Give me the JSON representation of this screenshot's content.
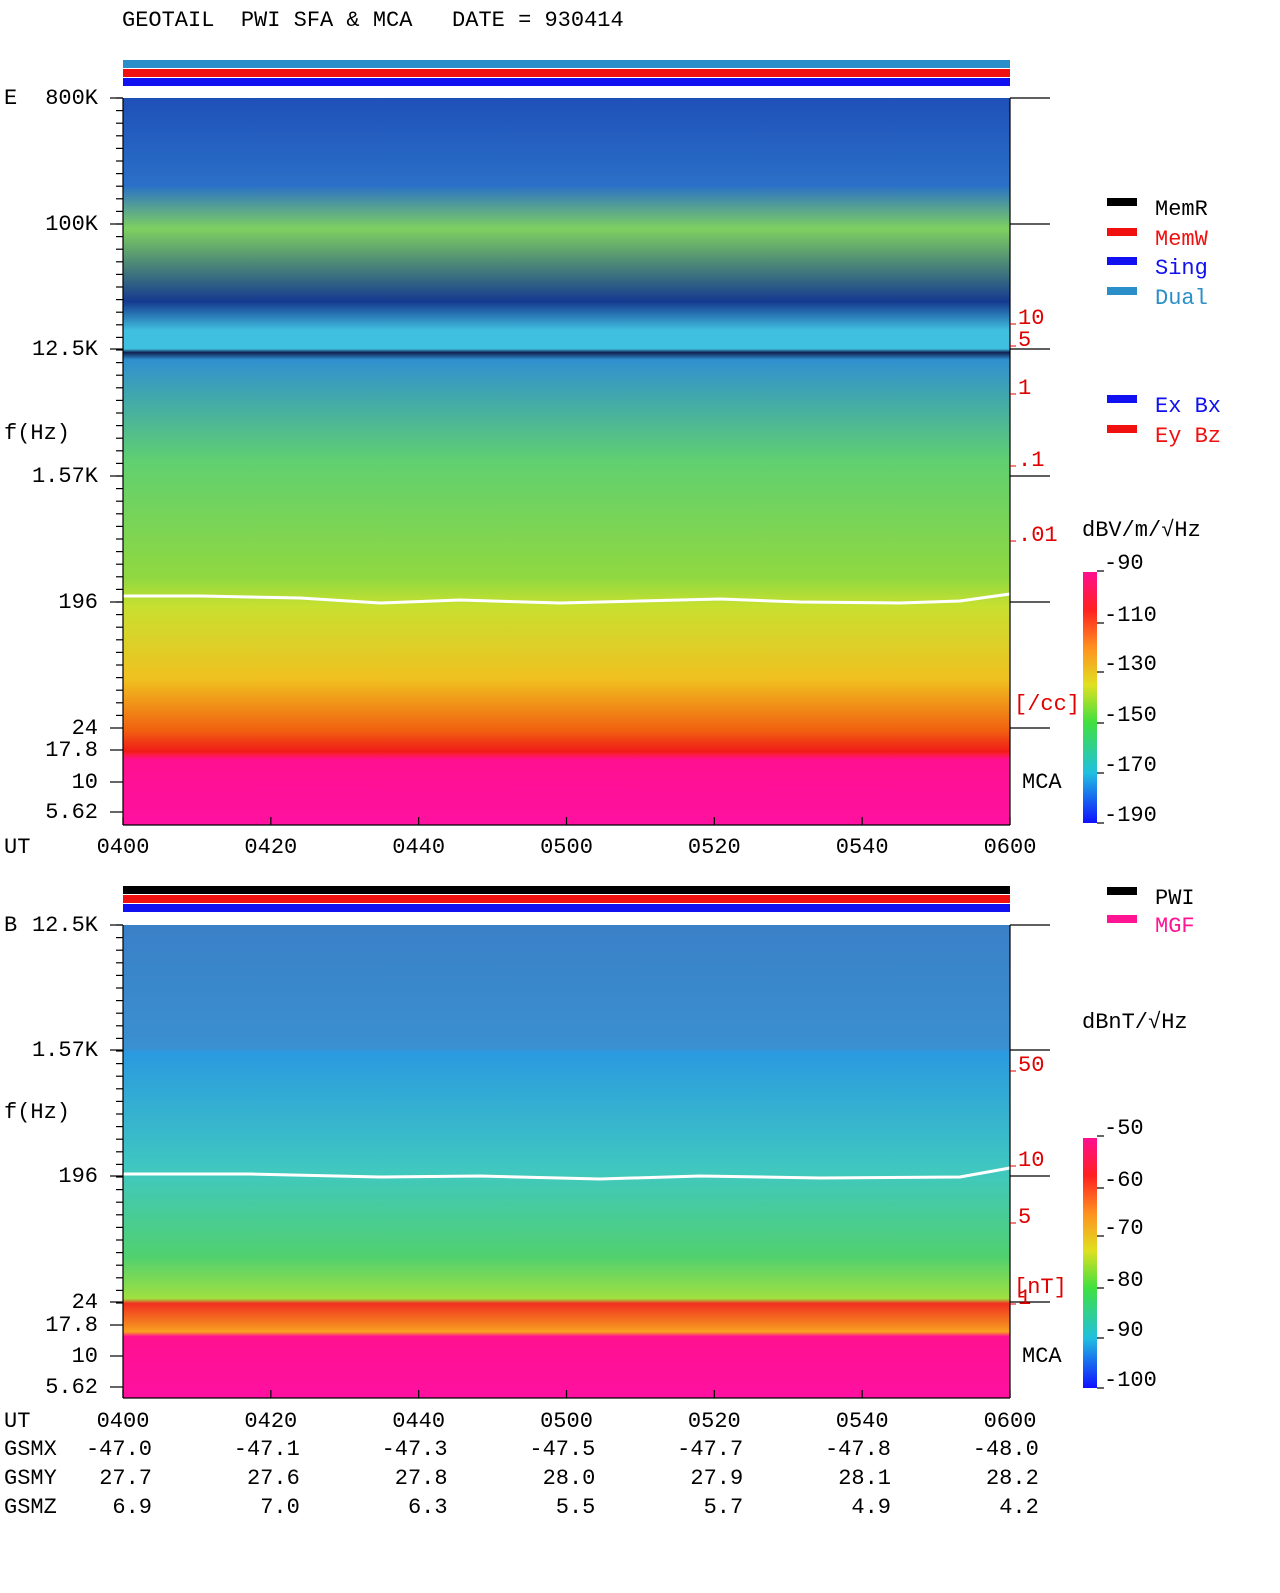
{
  "title": "GEOTAIL  PWI SFA & MCA   DATE = 930414",
  "panels": [
    {
      "label": "E",
      "y_axis_label": "f(Hz)",
      "y_ticks": [
        "800K",
        "100K",
        "12.5K",
        "1.57K",
        "196",
        "24",
        "17.8",
        "10",
        "5.62"
      ],
      "x_axis_label": "UT",
      "x_ticks": [
        "0400",
        "0420",
        "0440",
        "0500",
        "0520",
        "0540",
        "0600"
      ],
      "mca_label": "MCA",
      "secondary_ticks": [
        "10",
        "5",
        "1",
        ".1",
        ".01"
      ],
      "secondary_unit": "[/cc]",
      "colorbar_unit": "dBV/m/√Hz",
      "colorbar_ticks": [
        "-90",
        "-110",
        "-130",
        "-150",
        "-170",
        "-190"
      ]
    },
    {
      "label": "B",
      "y_axis_label": "f(Hz)",
      "y_ticks": [
        "12.5K",
        "1.57K",
        "196",
        "24",
        "17.8",
        "10",
        "5.62"
      ],
      "x_axis_label": "UT",
      "x_ticks": [
        "0400",
        "0420",
        "0440",
        "0500",
        "0520",
        "0540",
        "0600"
      ],
      "mca_label": "MCA",
      "secondary_ticks": [
        "50",
        "10",
        "5",
        "1"
      ],
      "secondary_unit": "[nT]",
      "colorbar_unit": "dBnT/√Hz",
      "colorbar_ticks": [
        "-50",
        "-60",
        "-70",
        "-80",
        "-90",
        "-100"
      ]
    }
  ],
  "legends": {
    "mode": [
      "MemR",
      "MemW",
      "Sing",
      "Dual"
    ],
    "component": [
      "Ex Bx",
      "Ey Bz"
    ],
    "source": [
      "PWI",
      "MGF"
    ]
  },
  "orbit": {
    "rows": [
      {
        "name": "GSMX",
        "values": [
          "-47.0",
          "-47.1",
          "-47.3",
          "-47.5",
          "-47.7",
          "-47.8",
          "-48.0"
        ]
      },
      {
        "name": "GSMY",
        "values": [
          "27.7",
          "27.6",
          "27.8",
          "28.0",
          "27.9",
          "28.1",
          "28.2"
        ]
      },
      {
        "name": "GSMZ",
        "values": [
          "6.9",
          "7.0",
          "6.3",
          "5.5",
          "5.7",
          "4.9",
          "4.2"
        ]
      }
    ]
  }
}
